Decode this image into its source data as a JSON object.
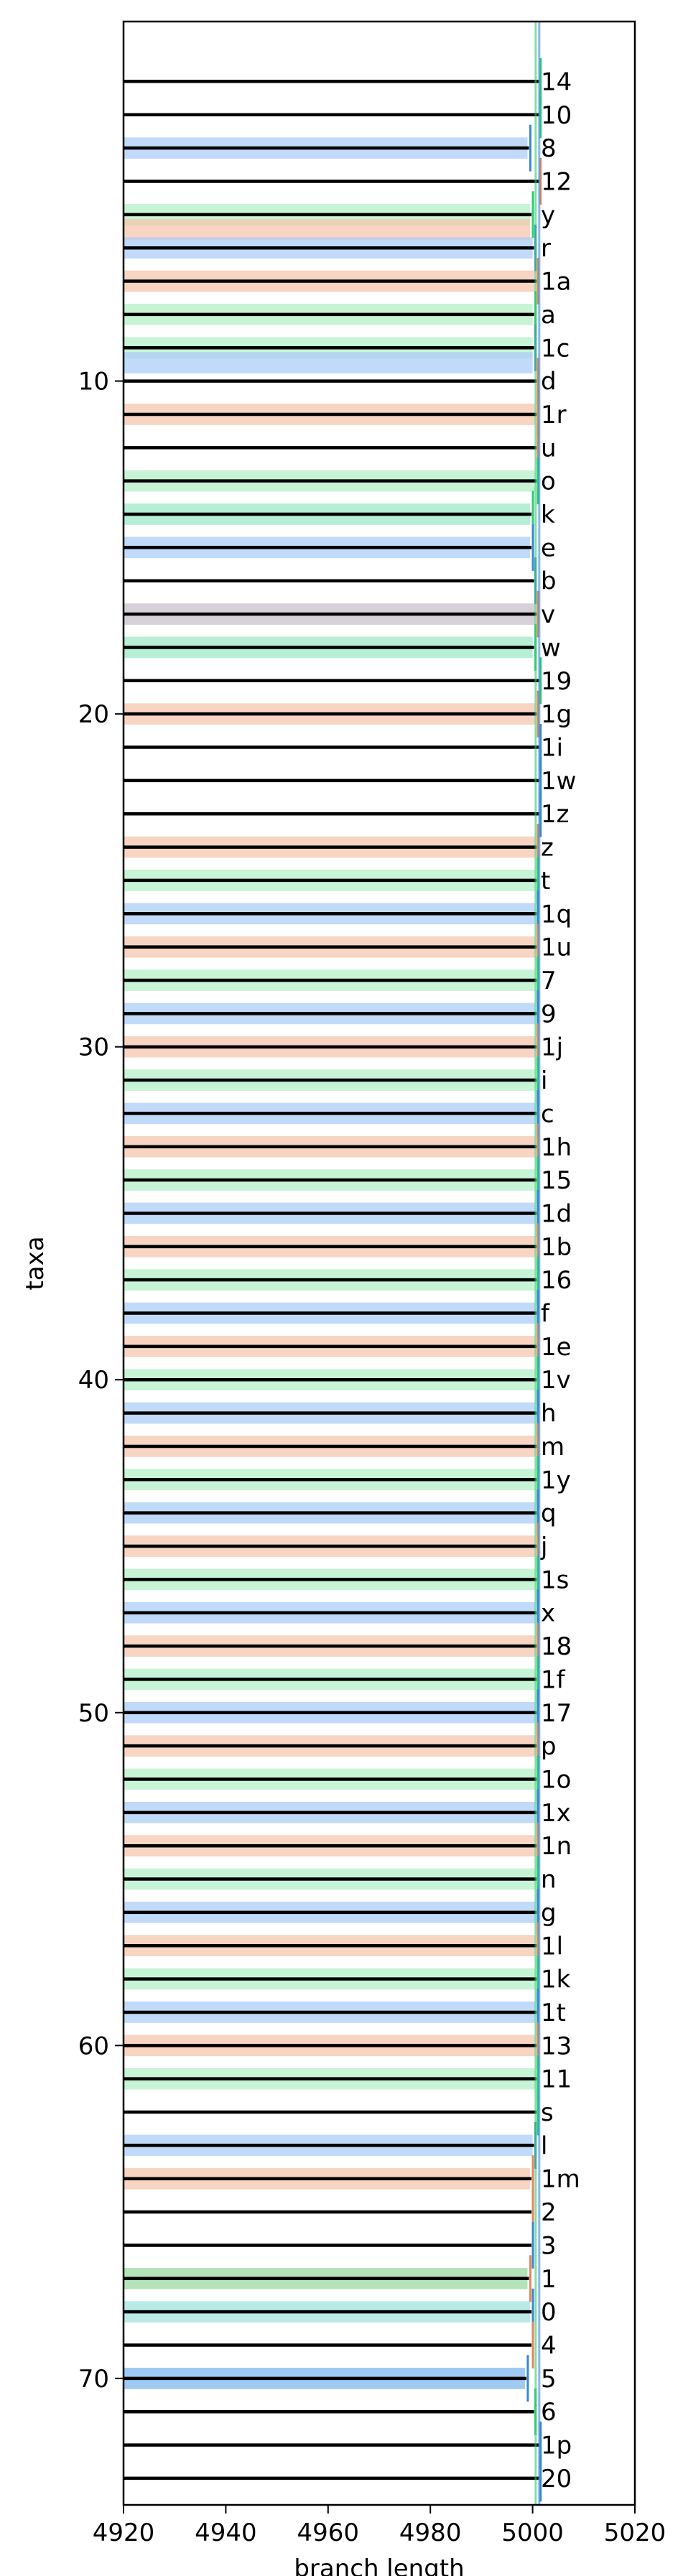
{
  "chart_data": {
    "type": "bar",
    "orientation": "horizontal",
    "xlabel": "branch length",
    "ylabel": "taxa",
    "xlim": [
      4920,
      5020
    ],
    "ylim": [
      73.8,
      -0.8
    ],
    "x_ticks": [
      4920,
      4940,
      4960,
      4980,
      5000,
      5020
    ],
    "y_ticks": [
      10,
      20,
      30,
      40,
      50,
      60,
      70
    ],
    "grid": false,
    "legend": "none",
    "rows": [
      {
        "y": 1,
        "label": "14",
        "band": null,
        "end": 5001.0,
        "mark_color": "#2ecc71"
      },
      {
        "y": 2,
        "label": "10",
        "band": null,
        "end": 5001.0,
        "mark_color": "#2ecc71"
      },
      {
        "y": 3,
        "label": "8",
        "band": "#aecdf7",
        "end": 4999.0,
        "mark_color": "#3a86d8"
      },
      {
        "y": 4,
        "label": "12",
        "band": null,
        "end": 5001.0,
        "mark_color": "#e8845a"
      },
      {
        "y": 5,
        "label": "y",
        "band": "#b5f0c8",
        "end": 4999.5,
        "mark_color": "#2ecc71"
      },
      {
        "y": 5.45,
        "label": "",
        "band": "#f6c6ad",
        "end": 4999.5,
        "mark_color": "#e8845a"
      },
      {
        "y": 6,
        "label": "r",
        "band": "#aecdf7",
        "end": 5000.0,
        "mark_color": "#3a86d8"
      },
      {
        "y": 7,
        "label": "1a",
        "band": "#f6c6ad",
        "end": 5000.5,
        "mark_color": "#e8845a"
      },
      {
        "y": 8,
        "label": "a",
        "band": "#b5f0c8",
        "end": 5000.0,
        "mark_color": "#2ecc71"
      },
      {
        "y": 9,
        "label": "1c",
        "band": "#b5f0c8",
        "end": 5000.0,
        "mark_color": "#3a86d8"
      },
      {
        "y": 9.45,
        "label": "",
        "band": "#aecdf7",
        "end": 5000.0,
        "mark_color": "#3a86d8"
      },
      {
        "y": 10,
        "label": "d",
        "band": null,
        "end": 5000.5,
        "mark_color": "#e8845a"
      },
      {
        "y": 11,
        "label": "1r",
        "band": "#f6c6ad",
        "end": 5000.5,
        "mark_color": "#e8845a"
      },
      {
        "y": 12,
        "label": "u",
        "band": null,
        "end": 5000.5,
        "mark_color": "#e8845a"
      },
      {
        "y": 13,
        "label": "o",
        "band": "#b5f0c8",
        "end": 5000.5,
        "mark_color": "#2ecc71"
      },
      {
        "y": 14,
        "label": "k",
        "band": "#9ee8c8",
        "end": 4999.5,
        "mark_color": "#2ecc71"
      },
      {
        "y": 15,
        "label": "e",
        "band": "#aecdf7",
        "end": 4999.5,
        "mark_color": "#3a86d8"
      },
      {
        "y": 16,
        "label": "b",
        "band": null,
        "end": 5000.0,
        "mark_color": "#3a86d8"
      },
      {
        "y": 17,
        "label": "v",
        "band": "#c8c0cc",
        "end": 5000.5,
        "mark_color": "#e8845a"
      },
      {
        "y": 18,
        "label": "w",
        "band": "#9ee8c8",
        "end": 5000.0,
        "mark_color": "#2ecc71"
      },
      {
        "y": 19,
        "label": "19",
        "band": null,
        "end": 5001.0,
        "mark_color": "#2ecc71"
      },
      {
        "y": 20,
        "label": "1g",
        "band": "#f6c6ad",
        "end": 5000.5,
        "mark_color": "#e8845a"
      },
      {
        "y": 21,
        "label": "1i",
        "band": null,
        "end": 5001.0,
        "mark_color": "#3a86d8"
      },
      {
        "y": 22,
        "label": "1w",
        "band": null,
        "end": 5001.0,
        "mark_color": "#3a86d8"
      },
      {
        "y": 23,
        "label": "1z",
        "band": null,
        "end": 5001.0,
        "mark_color": "#3a86d8"
      },
      {
        "y": 24,
        "label": "z",
        "band": "#f6c6ad",
        "end": 5000.5,
        "mark_color": "#e8845a"
      },
      {
        "y": 25,
        "label": "t",
        "band": "#b5f0c8",
        "end": 5000.5,
        "mark_color": "#2ecc71"
      },
      {
        "y": 26,
        "label": "1q",
        "band": "#aecdf7",
        "end": 5000.5,
        "mark_color": "#3a86d8"
      },
      {
        "y": 27,
        "label": "1u",
        "band": "#f6c6ad",
        "end": 5000.5,
        "mark_color": "#e8845a"
      },
      {
        "y": 28,
        "label": "7",
        "band": "#b5f0c8",
        "end": 5000.5,
        "mark_color": "#2ecc71"
      },
      {
        "y": 29,
        "label": "9",
        "band": "#aecdf7",
        "end": 5000.5,
        "mark_color": "#3a86d8"
      },
      {
        "y": 30,
        "label": "1j",
        "band": "#f6c6ad",
        "end": 5000.5,
        "mark_color": "#e8845a"
      },
      {
        "y": 31,
        "label": "i",
        "band": "#b5f0c8",
        "end": 5000.5,
        "mark_color": "#2ecc71"
      },
      {
        "y": 32,
        "label": "c",
        "band": "#aecdf7",
        "end": 5000.5,
        "mark_color": "#3a86d8"
      },
      {
        "y": 33,
        "label": "1h",
        "band": "#f6c6ad",
        "end": 5000.5,
        "mark_color": "#e8845a"
      },
      {
        "y": 34,
        "label": "15",
        "band": "#b5f0c8",
        "end": 5000.5,
        "mark_color": "#2ecc71"
      },
      {
        "y": 35,
        "label": "1d",
        "band": "#aecdf7",
        "end": 5000.5,
        "mark_color": "#3a86d8"
      },
      {
        "y": 36,
        "label": "1b",
        "band": "#f6c6ad",
        "end": 5000.5,
        "mark_color": "#e8845a"
      },
      {
        "y": 37,
        "label": "16",
        "band": "#b5f0c8",
        "end": 5000.5,
        "mark_color": "#2ecc71"
      },
      {
        "y": 38,
        "label": "f",
        "band": "#aecdf7",
        "end": 5000.5,
        "mark_color": "#3a86d8"
      },
      {
        "y": 39,
        "label": "1e",
        "band": "#f6c6ad",
        "end": 5000.5,
        "mark_color": "#e8845a"
      },
      {
        "y": 40,
        "label": "1v",
        "band": "#b5f0c8",
        "end": 5000.5,
        "mark_color": "#2ecc71"
      },
      {
        "y": 41,
        "label": "h",
        "band": "#aecdf7",
        "end": 5000.5,
        "mark_color": "#3a86d8"
      },
      {
        "y": 42,
        "label": "m",
        "band": "#f6c6ad",
        "end": 5000.5,
        "mark_color": "#e8845a"
      },
      {
        "y": 43,
        "label": "1y",
        "band": "#b5f0c8",
        "end": 5000.5,
        "mark_color": "#2ecc71"
      },
      {
        "y": 44,
        "label": "q",
        "band": "#aecdf7",
        "end": 5000.5,
        "mark_color": "#3a86d8"
      },
      {
        "y": 45,
        "label": "j",
        "band": "#f6c6ad",
        "end": 5000.5,
        "mark_color": "#e8845a"
      },
      {
        "y": 46,
        "label": "1s",
        "band": "#b5f0c8",
        "end": 5000.5,
        "mark_color": "#2ecc71"
      },
      {
        "y": 47,
        "label": "x",
        "band": "#aecdf7",
        "end": 5000.5,
        "mark_color": "#3a86d8"
      },
      {
        "y": 48,
        "label": "18",
        "band": "#f6c6ad",
        "end": 5000.5,
        "mark_color": "#e8845a"
      },
      {
        "y": 49,
        "label": "1f",
        "band": "#b5f0c8",
        "end": 5000.5,
        "mark_color": "#2ecc71"
      },
      {
        "y": 50,
        "label": "17",
        "band": "#aecdf7",
        "end": 5000.5,
        "mark_color": "#3a86d8"
      },
      {
        "y": 51,
        "label": "p",
        "band": "#f6c6ad",
        "end": 5000.5,
        "mark_color": "#e8845a"
      },
      {
        "y": 52,
        "label": "1o",
        "band": "#b5f0c8",
        "end": 5000.5,
        "mark_color": "#2ecc71"
      },
      {
        "y": 53,
        "label": "1x",
        "band": "#aecdf7",
        "end": 5000.5,
        "mark_color": "#3a86d8"
      },
      {
        "y": 54,
        "label": "1n",
        "band": "#f6c6ad",
        "end": 5000.5,
        "mark_color": "#e8845a"
      },
      {
        "y": 55,
        "label": "n",
        "band": "#b5f0c8",
        "end": 5000.5,
        "mark_color": "#2ecc71"
      },
      {
        "y": 56,
        "label": "g",
        "band": "#aecdf7",
        "end": 5000.5,
        "mark_color": "#3a86d8"
      },
      {
        "y": 57,
        "label": "1l",
        "band": "#f6c6ad",
        "end": 5000.5,
        "mark_color": "#e8845a"
      },
      {
        "y": 58,
        "label": "1k",
        "band": "#b5f0c8",
        "end": 5000.5,
        "mark_color": "#2ecc71"
      },
      {
        "y": 59,
        "label": "1t",
        "band": "#aecdf7",
        "end": 5000.5,
        "mark_color": "#3a86d8"
      },
      {
        "y": 60,
        "label": "13",
        "band": "#f6c6ad",
        "end": 5000.5,
        "mark_color": "#e8845a"
      },
      {
        "y": 61,
        "label": "11",
        "band": "#b5f0c8",
        "end": 5000.5,
        "mark_color": "#2ecc71"
      },
      {
        "y": 62,
        "label": "s",
        "band": null,
        "end": 5000.5,
        "mark_color": "#2ecc71"
      },
      {
        "y": 63,
        "label": "l",
        "band": "#aecdf7",
        "end": 5000.0,
        "mark_color": "#3a86d8"
      },
      {
        "y": 64,
        "label": "1m",
        "band": "#f6c6ad",
        "end": 4999.5,
        "mark_color": "#e8845a"
      },
      {
        "y": 65,
        "label": "2",
        "band": null,
        "end": 4999.5,
        "mark_color": "#e8845a"
      },
      {
        "y": 66,
        "label": "3",
        "band": null,
        "end": 4999.5,
        "mark_color": "#3a86d8"
      },
      {
        "y": 67,
        "label": "1",
        "band": "#9bd9a3",
        "end": 4999.0,
        "mark_color": "#e8845a"
      },
      {
        "y": 68,
        "label": "0",
        "band": "#a2e3e0",
        "end": 4999.5,
        "mark_color": "#3a86d8"
      },
      {
        "y": 69,
        "label": "4",
        "band": null,
        "end": 4999.5,
        "mark_color": "#e8845a"
      },
      {
        "y": 70,
        "label": "5",
        "band": "#7fb8f0",
        "end": 4998.5,
        "mark_color": "#3a86d8"
      },
      {
        "y": 71,
        "label": "6",
        "band": null,
        "end": 5000.0,
        "mark_color": "#2ecc71"
      },
      {
        "y": 72,
        "label": "1p",
        "band": null,
        "end": 5001.0,
        "mark_color": "#3a86d8"
      },
      {
        "y": 73,
        "label": "20",
        "band": null,
        "end": 5001.0,
        "mark_color": "#3a86d8"
      }
    ]
  }
}
